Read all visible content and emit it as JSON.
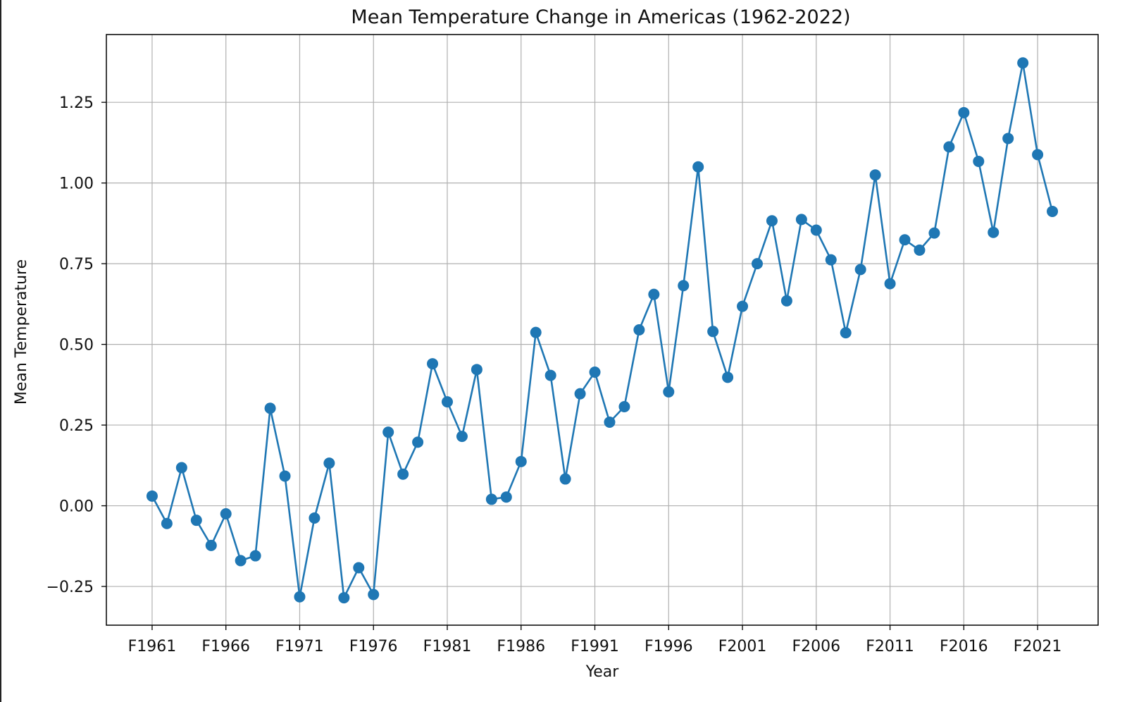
{
  "chart_data": {
    "type": "line",
    "title": "Mean Temperature Change in Americas (1962-2022)",
    "xlabel": "Year",
    "ylabel": "Mean Temperature",
    "grid": true,
    "line_color": "#1f77b4",
    "x_tick_labels": [
      "F1961",
      "F1966",
      "F1971",
      "F1976",
      "F1981",
      "F1986",
      "F1991",
      "F1996",
      "F2001",
      "F2006",
      "F2011",
      "F2016",
      "F2021"
    ],
    "y_tick_labels": [
      "−0.25",
      "0.00",
      "0.25",
      "0.50",
      "0.75",
      "1.00",
      "1.25"
    ],
    "y_ticks": [
      -0.25,
      0,
      0.25,
      0.5,
      0.75,
      1.0,
      1.25
    ],
    "xlim": [
      1957.9,
      2025.1
    ],
    "ylim": [
      -0.37,
      1.46
    ],
    "series": [
      {
        "x": [
          1961,
          1962,
          1963,
          1964,
          1965,
          1966,
          1967,
          1968,
          1969,
          1970,
          1971,
          1972,
          1973,
          1974,
          1975,
          1976,
          1977,
          1978,
          1979,
          1980,
          1981,
          1982,
          1983,
          1984,
          1985,
          1986,
          1987,
          1988,
          1989,
          1990,
          1991,
          1992,
          1993,
          1994,
          1995,
          1996,
          1997,
          1998,
          1999,
          2000,
          2001,
          2002,
          2003,
          2004,
          2005,
          2006,
          2007,
          2008,
          2009,
          2010,
          2011,
          2012,
          2013,
          2014,
          2015,
          2016,
          2017,
          2018,
          2019,
          2020,
          2021,
          2022
        ],
        "values": [
          0.03,
          -0.055,
          0.118,
          -0.045,
          -0.123,
          -0.025,
          -0.17,
          -0.155,
          0.302,
          0.092,
          -0.282,
          -0.038,
          0.132,
          -0.285,
          -0.192,
          -0.275,
          0.228,
          0.098,
          0.197,
          0.44,
          0.322,
          0.215,
          0.422,
          0.02,
          0.027,
          0.137,
          0.537,
          0.404,
          0.083,
          0.347,
          0.414,
          0.259,
          0.307,
          0.545,
          0.655,
          0.353,
          0.682,
          1.05,
          0.54,
          0.398,
          0.618,
          0.75,
          0.883,
          0.635,
          0.887,
          0.854,
          0.762,
          0.536,
          0.732,
          1.025,
          0.688,
          0.824,
          0.792,
          0.845,
          1.112,
          1.218,
          1.067,
          0.847,
          1.138,
          1.372,
          1.088,
          0.912
        ]
      }
    ]
  }
}
